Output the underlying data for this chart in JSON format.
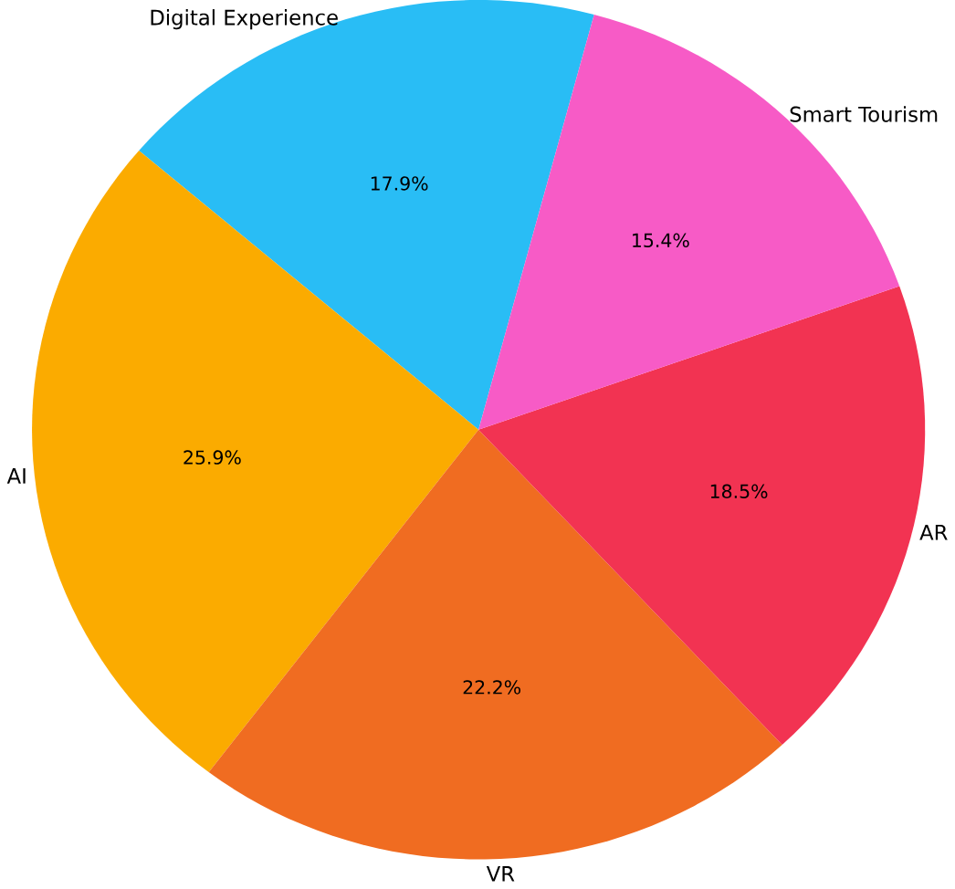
{
  "chart_data": {
    "type": "pie",
    "categories": [
      "Digital Experience",
      "AI",
      "VR",
      "AR",
      "Smart Tourism"
    ],
    "values": [
      17.9,
      25.9,
      22.2,
      18.5,
      15.4
    ],
    "colors": [
      "#29bdf5",
      "#fbab00",
      "#f06c21",
      "#f23352",
      "#f75bc6"
    ],
    "value_labels": [
      "17.9%",
      "25.9%",
      "22.2%",
      "18.5%",
      "15.4%"
    ]
  }
}
